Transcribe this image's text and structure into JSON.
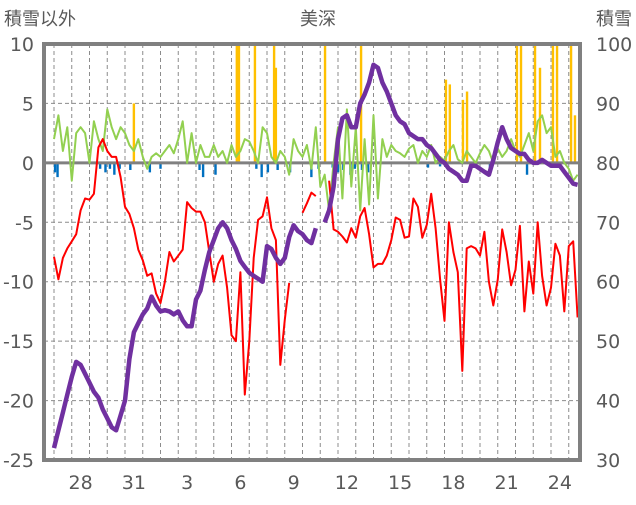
{
  "chart_data": {
    "type": "line",
    "title": "美深",
    "ylabel_left": "積雪以外",
    "ylabel_right": "積雪",
    "ylim_left": [
      -25,
      10
    ],
    "ylim_right": [
      30,
      100
    ],
    "yticks_left": [
      "10",
      "5",
      "0",
      "-5",
      "-10",
      "-15",
      "-20",
      "-25"
    ],
    "yticks_left_values": [
      10,
      5,
      0,
      -5,
      -10,
      -15,
      -20,
      -25
    ],
    "yticks_right": [
      "100",
      "90",
      "80",
      "70",
      "60",
      "50",
      "40",
      "30"
    ],
    "yticks_right_values": [
      100,
      90,
      80,
      70,
      60,
      50,
      40,
      30
    ],
    "x_unit": "days since Dec 27 00:00",
    "xlim": [
      -0.56,
      29.65
    ],
    "x_ticks": [
      {
        "day": 1.5,
        "label": "28"
      },
      {
        "day": 4.5,
        "label": "31"
      },
      {
        "day": 7.5,
        "label": "3"
      },
      {
        "day": 10.5,
        "label": "6"
      },
      {
        "day": 13.5,
        "label": "9"
      },
      {
        "day": 16.5,
        "label": "12"
      },
      {
        "day": 19.5,
        "label": "15"
      },
      {
        "day": 22.5,
        "label": "18"
      },
      {
        "day": 25.5,
        "label": "21"
      },
      {
        "day": 28.5,
        "label": "24"
      }
    ],
    "grid": true,
    "sample_step_days": 0.25,
    "series": [
      {
        "name": "green",
        "axis": "left",
        "color": "#92d050",
        "values": [
          2,
          4,
          1,
          3,
          -1.5,
          2.5,
          3,
          2.5,
          0,
          3.5,
          2,
          1,
          4.5,
          3,
          2,
          3,
          2.5,
          1.5,
          1,
          2,
          0.5,
          -0.5,
          0.5,
          0.8,
          0.5,
          1,
          1.5,
          0.8,
          2,
          3.5,
          0,
          2.5,
          0,
          1.5,
          0.5,
          0.5,
          1.5,
          0.5,
          1,
          0,
          1.5,
          0.5,
          1,
          2,
          1.8,
          1,
          0,
          3,
          2.5,
          0.5,
          0,
          1,
          0.5,
          -1,
          2,
          1,
          0.5,
          1.5,
          -0.5,
          3,
          -2,
          -1,
          -4,
          0,
          3,
          -3,
          4.5,
          -2,
          3,
          -4,
          2,
          -3.5,
          4,
          -3,
          2,
          0.5,
          1.5,
          1,
          0.8,
          0.5,
          1.2,
          1.5,
          0,
          1,
          0.5,
          1.5,
          0,
          0.5,
          0.2,
          1,
          1.5,
          0.3,
          0,
          1,
          0.5,
          0,
          0.8,
          1.5,
          1,
          0,
          1.2,
          0.5,
          1,
          2,
          1,
          0.5,
          1.5,
          2.5,
          1,
          3.5,
          4,
          2.5,
          3,
          0.5,
          1,
          0,
          -0.5,
          -1.5,
          -1
        ]
      },
      {
        "name": "red",
        "axis": "left",
        "color": "#ff0000",
        "values": [
          -7.9,
          -9.8,
          -8,
          -7.2,
          -6.6,
          -6,
          -4,
          -3,
          -3.1,
          -2.6,
          1.3,
          2,
          1,
          0.5,
          0.5,
          -1.2,
          -3.7,
          -4.3,
          -5.5,
          -7.3,
          -8.2,
          -9.5,
          -9.3,
          -11,
          -11.8,
          -10,
          -7.5,
          -8.3,
          -7.8,
          -7.3,
          -3.3,
          -3.8,
          -4.1,
          -4.1,
          -5,
          -7.5,
          -10,
          -8.5,
          -7.8,
          -10.5,
          -14.5,
          -15,
          -9.2,
          -19.5,
          -15,
          -8,
          -4.8,
          -4.5,
          -2.9,
          -5.5,
          -6.5,
          -17,
          -13.2,
          -10.1,
          null,
          null,
          -4.2,
          -3.4,
          -2.5,
          -2.8,
          null,
          null,
          -1.5,
          -5.6,
          -5.8,
          -6.2,
          -6.7,
          -5.5,
          -6.3,
          -4.5,
          -3.8,
          -6,
          -8.8,
          -8.5,
          -8.5,
          -7.8,
          -6.5,
          -4.6,
          -4.8,
          -6.3,
          -6.2,
          -3,
          -3.7,
          -6.3,
          -5.2,
          -2.6,
          -5.5,
          -9.8,
          -13.3,
          -5,
          -7.5,
          -9.2,
          -17.5,
          -7.2,
          -7,
          -7.2,
          -7.8,
          -5.8,
          -10,
          -12,
          -9.8,
          -5.6,
          -7.5,
          -10.3,
          -9,
          -5.3,
          -12.5,
          -8.3,
          -11,
          -5,
          -9.5,
          -12,
          -10.5,
          -6.8,
          -7.8,
          -12.5,
          -7,
          -6.6,
          -13
        ]
      },
      {
        "name": "snow_depth",
        "axis": "right",
        "color": "#7030a0",
        "values": [
          32,
          35,
          38,
          41,
          44,
          46.5,
          46,
          44.5,
          43,
          41.5,
          40.5,
          38.5,
          37,
          35.5,
          35,
          37.5,
          40,
          47,
          51.5,
          53,
          54.5,
          55.5,
          57.5,
          56,
          55,
          55.2,
          55,
          54.5,
          55,
          53.5,
          52.5,
          52.5,
          57,
          58.5,
          62,
          65,
          67,
          69,
          70,
          69,
          67,
          65.5,
          63.5,
          62.5,
          61.5,
          61,
          60.5,
          60,
          66,
          65.5,
          64,
          63,
          64,
          67.5,
          69.5,
          68.5,
          68,
          67,
          66.5,
          69,
          null,
          70,
          72,
          76,
          84,
          87.5,
          88,
          86,
          86,
          90,
          91.5,
          93.5,
          96.5,
          96,
          93.5,
          92,
          90,
          88,
          87,
          86.5,
          85,
          84.5,
          84,
          84,
          83,
          82.5,
          81.5,
          80.5,
          80,
          79,
          78.5,
          78,
          77,
          77,
          79.5,
          79.5,
          79,
          78.5,
          78,
          80.5,
          83.5,
          86,
          84,
          82.5,
          82,
          81.5,
          81.5,
          80.5,
          80,
          80,
          80.5,
          80,
          79.5,
          79.5,
          79.5,
          78.5,
          77.5,
          76.5,
          76.3
        ]
      }
    ],
    "bars": [
      {
        "name": "yellow",
        "axis": "left",
        "color": "#ffc000",
        "points": [
          [
            4.5,
            5
          ],
          [
            10.3,
            10
          ],
          [
            10.42,
            10
          ],
          [
            11.32,
            10
          ],
          [
            12.4,
            10
          ],
          [
            12.5,
            8
          ],
          [
            15.27,
            10
          ],
          [
            17.3,
            10
          ],
          [
            22.08,
            7
          ],
          [
            22.3,
            6.6
          ],
          [
            23.04,
            5.3
          ],
          [
            23.27,
            6
          ],
          [
            26.08,
            10
          ],
          [
            26.31,
            10
          ],
          [
            27.1,
            10
          ],
          [
            27.38,
            8
          ],
          [
            28.11,
            10
          ],
          [
            28.34,
            10
          ],
          [
            29.13,
            10
          ],
          [
            29.35,
            4
          ]
        ]
      },
      {
        "name": "blue",
        "axis": "left",
        "color": "#0070c0",
        "points": [
          [
            0.06,
            -0.8
          ],
          [
            0.2,
            -1.2
          ],
          [
            2.6,
            -0.5
          ],
          [
            2.9,
            -0.8
          ],
          [
            3.15,
            -0.5
          ],
          [
            3.4,
            -1
          ],
          [
            3.7,
            -0.5
          ],
          [
            4.3,
            -0.6
          ],
          [
            5.4,
            -0.8
          ],
          [
            6.0,
            -0.5
          ],
          [
            8.2,
            -0.6
          ],
          [
            8.4,
            -1.2
          ],
          [
            9.1,
            -1
          ],
          [
            11.4,
            -0.5
          ],
          [
            11.7,
            -1.2
          ],
          [
            12.05,
            -0.8
          ],
          [
            12.6,
            -0.6
          ],
          [
            13.3,
            -0.8
          ],
          [
            14.5,
            -1.2
          ],
          [
            14.9,
            -0.5
          ],
          [
            15.7,
            -0.4
          ],
          [
            16.0,
            -0.8
          ],
          [
            16.3,
            -0.6
          ],
          [
            16.7,
            -1
          ],
          [
            16.95,
            -0.5
          ],
          [
            17.35,
            -0.6
          ],
          [
            17.7,
            -0.8
          ],
          [
            21.07,
            -0.4
          ],
          [
            21.75,
            -0.3
          ],
          [
            24.56,
            -0.5
          ],
          [
            26.65,
            -1
          ]
        ]
      }
    ],
    "frame_color": "#808080"
  }
}
